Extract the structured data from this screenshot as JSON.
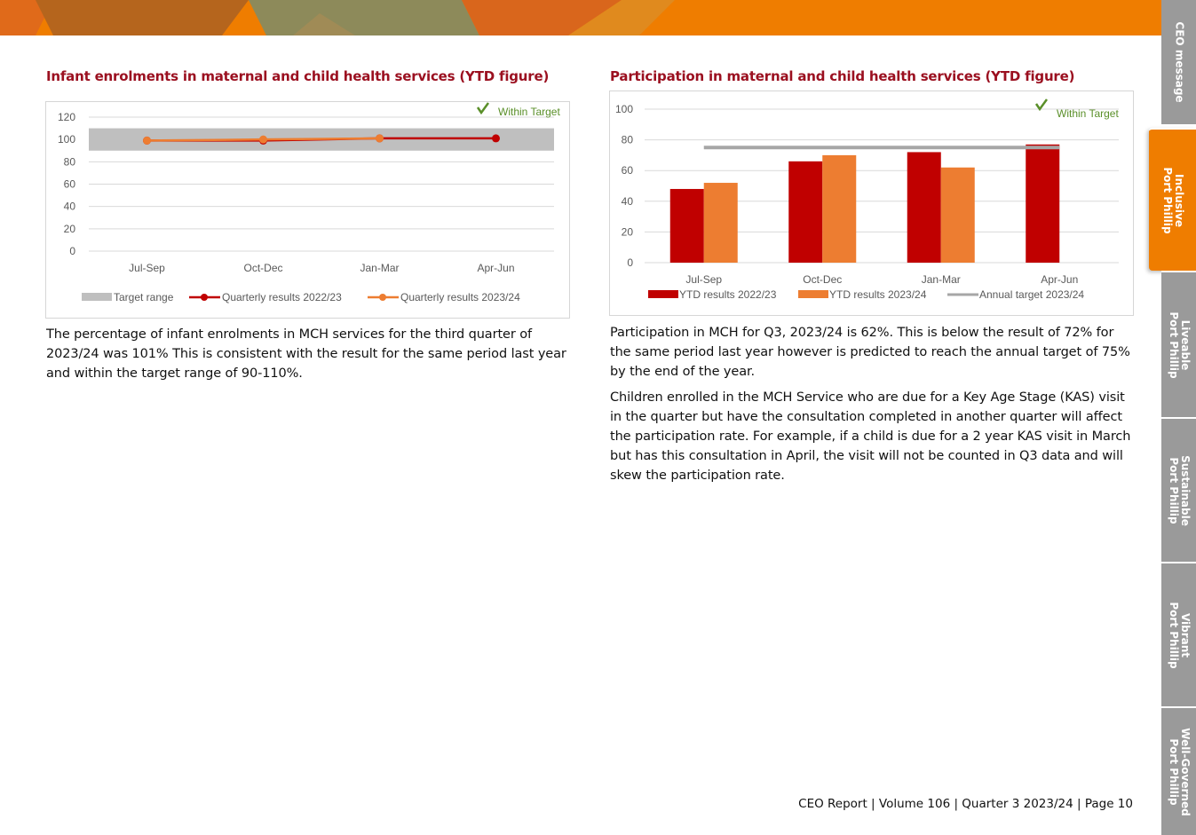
{
  "colors": {
    "accent_orange": "#ef7d00",
    "title_red": "#9b1020",
    "series_2022": "#c00000",
    "series_2023": "#ed7d31",
    "target_grey": "#a6a6a6",
    "within_target_green": "#5a8f29",
    "tab_grey": "#9a9a9a"
  },
  "tabs": [
    {
      "label_line1": "CEO message",
      "label_line2": "",
      "active": false
    },
    {
      "label_line1": "Inclusive",
      "label_line2": "Port Phillip",
      "active": true
    },
    {
      "label_line1": "Liveable",
      "label_line2": "Port Phillip",
      "active": false
    },
    {
      "label_line1": "Sustainable",
      "label_line2": "Port Phillip",
      "active": false
    },
    {
      "label_line1": "Vibrant",
      "label_line2": "Port Phillip",
      "active": false
    },
    {
      "label_line1": "Well-Governed",
      "label_line2": "Port Phillip",
      "active": false
    }
  ],
  "left": {
    "title": "Infant enrolments in maternal and child health services (YTD figure)",
    "status_label": "Within Target",
    "paragraph": "The percentage of infant enrolments in MCH services for the third quarter of 2023/24 was 101% This is consistent with the result for the same period last year and within the target range of 90-110%."
  },
  "right": {
    "title": "Participation in maternal and child health services (YTD figure)",
    "status_label": "Within Target",
    "paragraphs": [
      "Participation in MCH for Q3, 2023/24 is 62%. This is below the result of 72% for the same period last year however is predicted to reach the annual target of 75% by the end of the year.",
      "Children enrolled in the MCH Service who are due for a Key Age Stage (KAS) visit in the quarter but have the consultation completed in another quarter will affect the participation rate. For example, if a child is due for a 2 year KAS visit in March but has this consultation in April, the visit will not be counted in Q3 data and will skew the participation rate."
    ]
  },
  "footer": "CEO Report | Volume 106 | Quarter 3 2023/24 | Page 10",
  "chart_data": [
    {
      "type": "line",
      "title": "",
      "categories": [
        "Jul-Sep",
        "Oct-Dec",
        "Jan-Mar",
        "Apr-Jun"
      ],
      "ylim": [
        0,
        120
      ],
      "yticks": [
        0,
        20,
        40,
        60,
        80,
        100,
        120
      ],
      "target_range": {
        "name": "Target range",
        "low": 90,
        "high": 110
      },
      "series": [
        {
          "name": "Quarterly results 2022/23",
          "values": [
            99,
            99,
            101,
            101
          ],
          "color": "#c00000"
        },
        {
          "name": "Quarterly results 2023/24",
          "values": [
            99,
            100,
            101,
            null
          ],
          "color": "#ed7d31"
        }
      ],
      "grid": true,
      "legend": "bottom"
    },
    {
      "type": "bar",
      "title": "",
      "categories": [
        "Jul-Sep",
        "Oct-Dec",
        "Jan-Mar",
        "Apr-Jun"
      ],
      "ylim": [
        0,
        100
      ],
      "yticks": [
        0,
        20,
        40,
        60,
        80,
        100
      ],
      "series": [
        {
          "name": "YTD results 2022/23",
          "values": [
            48,
            66,
            72,
            77
          ],
          "color": "#c00000"
        },
        {
          "name": "YTD results 2023/24",
          "values": [
            52,
            70,
            62,
            null
          ],
          "color": "#ed7d31"
        }
      ],
      "target_line": {
        "name": "Annual target 2023/24",
        "value": 75,
        "color": "#a6a6a6"
      },
      "grid": true,
      "legend": "bottom"
    }
  ]
}
